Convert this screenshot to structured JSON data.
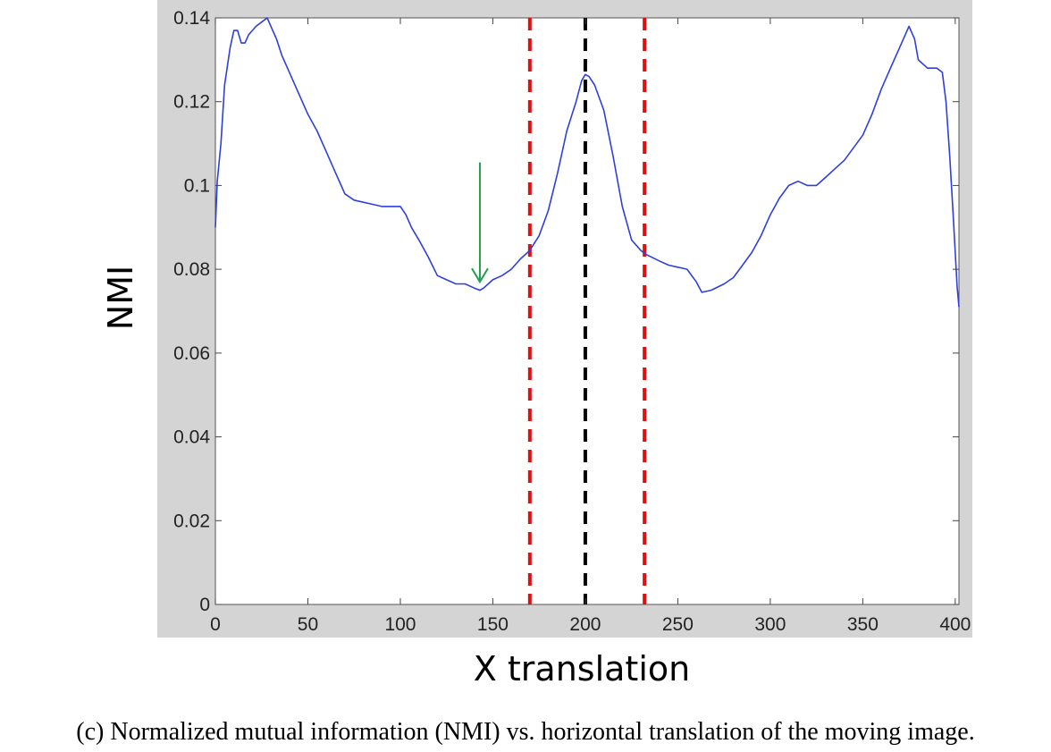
{
  "caption": "(c) Normalized mutual information (NMI) vs. horizontal translation of the moving image.",
  "colors": {
    "frame": "#d4d4d4",
    "plot_bg": "#ffffff",
    "curve": "#2f3fdc",
    "red_lines": "#e01010",
    "black_line": "#000000",
    "arrow": "#22a050"
  },
  "chart_data": {
    "type": "line",
    "title": "",
    "xlabel": "X translation",
    "ylabel": "NMI",
    "xlim": [
      0,
      402
    ],
    "ylim": [
      0,
      0.14
    ],
    "xticks": [
      0,
      50,
      100,
      150,
      200,
      250,
      300,
      350,
      400
    ],
    "yticks": [
      0,
      0.02,
      0.04,
      0.06,
      0.08,
      0.1,
      0.12,
      0.14
    ],
    "grid": false,
    "series": [
      {
        "x": [
          0,
          1,
          3,
          5,
          8,
          10,
          12,
          14,
          16,
          18,
          20,
          22,
          25,
          28,
          30,
          33,
          36,
          40,
          45,
          50,
          55,
          60,
          65,
          70,
          75,
          80,
          85,
          90,
          95,
          100,
          103,
          106,
          110,
          115,
          120,
          125,
          130,
          135,
          140,
          143,
          145,
          150,
          155,
          160,
          165,
          170,
          175,
          180,
          185,
          190,
          195,
          198,
          200,
          202,
          205,
          210,
          215,
          220,
          225,
          230,
          233,
          240,
          245,
          250,
          255,
          260,
          263,
          268,
          275,
          280,
          285,
          290,
          295,
          300,
          305,
          310,
          315,
          320,
          325,
          330,
          335,
          340,
          345,
          350,
          355,
          360,
          365,
          370,
          373,
          375,
          378,
          380,
          385,
          390,
          393,
          395,
          397,
          399,
          401,
          402
        ],
        "y": [
          0.09,
          0.101,
          0.11,
          0.124,
          0.133,
          0.137,
          0.137,
          0.134,
          0.134,
          0.136,
          0.137,
          0.138,
          0.139,
          0.14,
          0.138,
          0.135,
          0.131,
          0.127,
          0.122,
          0.117,
          0.113,
          0.108,
          0.103,
          0.098,
          0.0965,
          0.096,
          0.0955,
          0.095,
          0.095,
          0.095,
          0.093,
          0.09,
          0.087,
          0.083,
          0.0785,
          0.0775,
          0.0765,
          0.0765,
          0.0755,
          0.075,
          0.0755,
          0.0775,
          0.0785,
          0.08,
          0.0825,
          0.0845,
          0.088,
          0.094,
          0.103,
          0.113,
          0.12,
          0.125,
          0.1265,
          0.126,
          0.124,
          0.118,
          0.107,
          0.095,
          0.087,
          0.0845,
          0.0835,
          0.082,
          0.081,
          0.0805,
          0.08,
          0.077,
          0.0745,
          0.075,
          0.0765,
          0.078,
          0.081,
          0.084,
          0.088,
          0.093,
          0.097,
          0.1,
          0.101,
          0.1,
          0.1,
          0.102,
          0.104,
          0.106,
          0.109,
          0.112,
          0.117,
          0.123,
          0.128,
          0.133,
          0.136,
          0.138,
          0.135,
          0.13,
          0.128,
          0.128,
          0.127,
          0.12,
          0.107,
          0.092,
          0.076,
          0.071
        ]
      }
    ],
    "vertical_lines": [
      {
        "x": 170,
        "color": "red",
        "style": "dashed"
      },
      {
        "x": 200,
        "color": "black",
        "style": "dashed"
      },
      {
        "x": 232,
        "color": "red",
        "style": "dashed"
      }
    ],
    "annotations": [
      {
        "type": "arrow",
        "color": "green",
        "x": 143,
        "y_from": 0.1055,
        "y_to": 0.077
      }
    ]
  }
}
